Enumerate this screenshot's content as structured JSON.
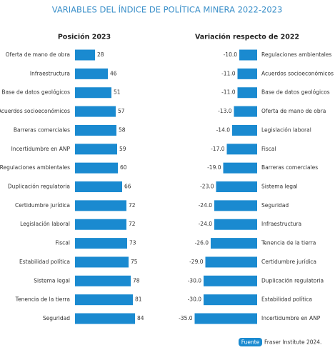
{
  "title": "VARIABLES DEL ÍNDICE DE POLÍTICA MINERA 2022-2023",
  "source": {
    "badge": "Fuente",
    "text": "Fraser Institute 2024."
  },
  "chart_data": [
    {
      "type": "bar",
      "orientation": "horizontal",
      "title": "Posición 2023",
      "color": "#1a8ad0",
      "categories": [
        "Oferta de mano de obra",
        "Infraestructura",
        "Base de datos geológicos",
        "Acuerdos socioeconómicos",
        "Barreras comerciales",
        "Incertidumbre en ANP",
        "Regulaciones ambientales",
        "Duplicación regulatoria",
        "Certidumbre jurídica",
        "Legislación laboral",
        "Fiscal",
        "Estabilidad política",
        "Sistema legal",
        "Tenencia de la tierra",
        "Seguridad"
      ],
      "values": [
        28,
        46,
        51,
        57,
        58,
        59,
        60,
        66,
        72,
        72,
        73,
        75,
        78,
        81,
        84
      ],
      "xlim": [
        0,
        100
      ]
    },
    {
      "type": "bar",
      "orientation": "horizontal",
      "title": "Variación respecto de 2022",
      "color": "#1a8ad0",
      "categories": [
        "Regulaciones ambientales",
        "Acuerdos socioeconómicos",
        "Base de datos geológicos",
        "Oferta de mano de obra",
        "Legislación laboral",
        "Fiscal",
        "Barreras comerciales",
        "Sistema legal",
        "Seguridad",
        "Infraestructura",
        "Tenencia de la tierra",
        "Certidumbre jurídica",
        "Duplicación regulatoria",
        "Estabilidad política",
        "Incertidumbre en ANP"
      ],
      "values": [
        -10,
        -11,
        -11,
        -13,
        -14,
        -17,
        -19,
        -23,
        -24,
        -24,
        -26,
        -29,
        -30,
        -30,
        -35
      ],
      "value_labels": [
        "-10.0",
        "-11.0",
        "-11.0",
        "-13.0",
        "-14.0",
        "-17.0",
        "-19.0",
        "-23.0",
        "-24.0",
        "-24.0",
        "-26.0",
        "-29.0",
        "-30.0",
        "-30.0",
        "-35.0"
      ],
      "xlim": [
        -36,
        0
      ]
    }
  ]
}
